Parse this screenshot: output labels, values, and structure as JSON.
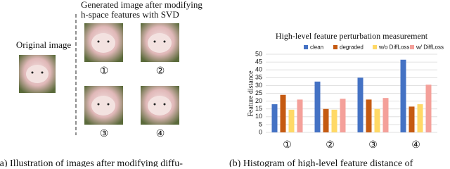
{
  "figure": {
    "original_label": "Original image",
    "generated_title": [
      "Generated image after modifying",
      "h-space features with SVD"
    ],
    "images": [
      {
        "label": "①"
      },
      {
        "label": "②"
      },
      {
        "label": "③"
      },
      {
        "label": "④"
      }
    ],
    "captions": [
      "(a) Illustration of images after modifying diffu-",
      "(b) Histogram of high-level feature distance of"
    ]
  },
  "chart_data": {
    "type": "bar",
    "title": "High-level feature perturbation measurement",
    "y_label": "Feature distance",
    "categories": [
      "①",
      "②",
      "③",
      "④"
    ],
    "series": [
      {
        "name": "clean",
        "color": "#4472c4",
        "values": [
          18,
          32.5,
          35,
          46.5
        ]
      },
      {
        "name": "degraded",
        "color": "#c55a11",
        "values": [
          24,
          15,
          21,
          16.5
        ]
      },
      {
        "name": "w/o DiffLoss",
        "color": "#ffd966",
        "values": [
          14.5,
          14.5,
          15,
          18
        ]
      },
      {
        "name": "w/ DiffLoss",
        "color": "#f4a09a",
        "values": [
          21,
          21.5,
          22,
          30.5
        ]
      }
    ],
    "ylim": [
      0,
      50
    ],
    "yticks": [
      0,
      5,
      10,
      15,
      20,
      25,
      30,
      35,
      40,
      45,
      50
    ],
    "grid": true
  }
}
